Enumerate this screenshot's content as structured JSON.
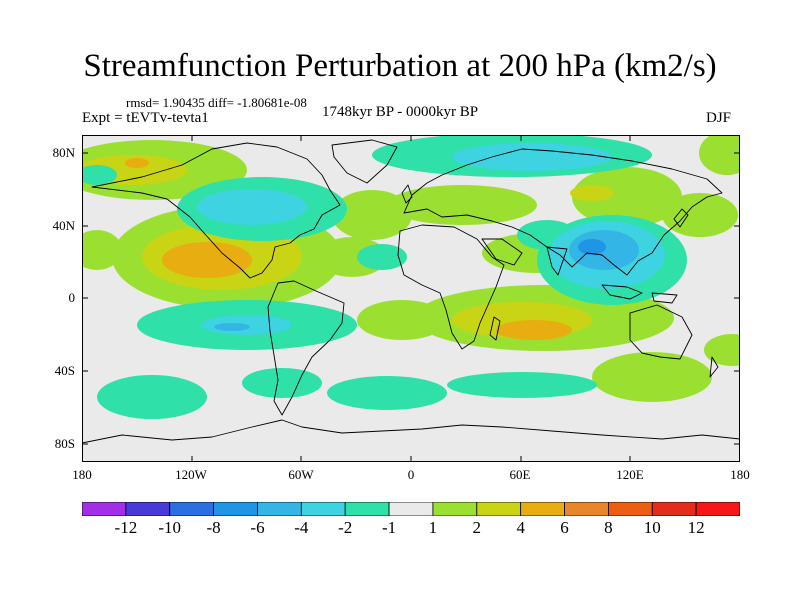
{
  "title": "Streamfunction Perturbation at 200 hPa (km2/s)",
  "stats_line": "rmsd= 1.90435 diff= -1.80681e-08",
  "experiment": "Expt = tEVTv-tevta1",
  "period": "1748kyr BP - 0000kyr BP",
  "season": "DJF",
  "lat_ticks": [
    "80N",
    "40N",
    "0",
    "40S",
    "80S"
  ],
  "lon_ticks": [
    "180",
    "120W",
    "60W",
    "0",
    "60E",
    "120E",
    "180"
  ],
  "colorbar": {
    "labels": [
      "-12",
      "-10",
      "-8",
      "-6",
      "-4",
      "-2",
      "-1",
      "1",
      "2",
      "4",
      "6",
      "8",
      "10",
      "12"
    ],
    "colors": [
      "#a22ee6",
      "#4a3ad8",
      "#2c6fe0",
      "#1f95e6",
      "#33b6e6",
      "#3ed3e0",
      "#2fe0a8",
      "#eaeaea",
      "#9be030",
      "#c9d414",
      "#e8ad10",
      "#e8862a",
      "#ec5e12",
      "#e42c1a",
      "#f61818"
    ]
  },
  "map": {
    "projection": "cylindrical-equidistant",
    "lon_range": [
      -180,
      180
    ],
    "lat_range": [
      -90,
      90
    ],
    "neutral_color": "#eaeaea"
  }
}
